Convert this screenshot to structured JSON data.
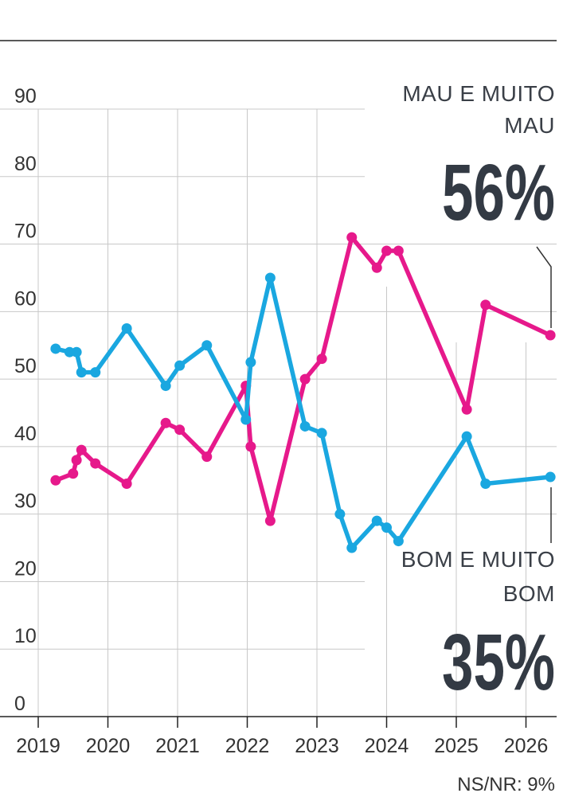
{
  "chart_data": {
    "type": "line",
    "ylim": [
      0,
      90
    ],
    "yticks": [
      0,
      10,
      20,
      30,
      40,
      50,
      60,
      70,
      80,
      90
    ],
    "xlim": [
      2019,
      2026.42
    ],
    "xticks": [
      2019,
      2020,
      2021,
      2022,
      2023,
      2024,
      2025,
      2026
    ],
    "grid": true,
    "series": [
      {
        "name": "MAU E MUITO MAU",
        "color": "#e6198b",
        "x": [
          2019.25,
          2019.5,
          2019.55,
          2019.62,
          2019.82,
          2020.27,
          2020.83,
          2021.03,
          2021.42,
          2021.98,
          2022.05,
          2022.33,
          2022.83,
          2023.07,
          2023.5,
          2023.86,
          2024.0,
          2024.17,
          2025.15,
          2025.42,
          2026.35
        ],
        "values": [
          35,
          36,
          38,
          39.5,
          37.5,
          34.5,
          43.5,
          42.5,
          38.5,
          49,
          40,
          29,
          50,
          53,
          71,
          66.5,
          69,
          69,
          45.5,
          61,
          56.5
        ]
      },
      {
        "name": "BOM E MUITO BOM",
        "color": "#1aa7e0",
        "x": [
          2019.25,
          2019.45,
          2019.55,
          2019.62,
          2019.82,
          2020.27,
          2020.83,
          2021.03,
          2021.42,
          2021.98,
          2022.05,
          2022.33,
          2022.83,
          2023.07,
          2023.33,
          2023.5,
          2023.86,
          2024.0,
          2024.17,
          2025.15,
          2025.42,
          2026.35
        ],
        "values": [
          54.5,
          54,
          54,
          51,
          51,
          57.5,
          49,
          52,
          55,
          44,
          52.5,
          65,
          43,
          42,
          30,
          25,
          29,
          28,
          26,
          41.5,
          34.5,
          35.5
        ]
      }
    ],
    "callouts": {
      "mau_label_line1": "MAU E MUITO",
      "mau_label_line2": "MAU",
      "mau_value": "56%",
      "bom_label_line1": "BOM E MUITO",
      "bom_label_line2": "BOM",
      "bom_value": "35%"
    },
    "note": "NS/NR: 9%"
  }
}
